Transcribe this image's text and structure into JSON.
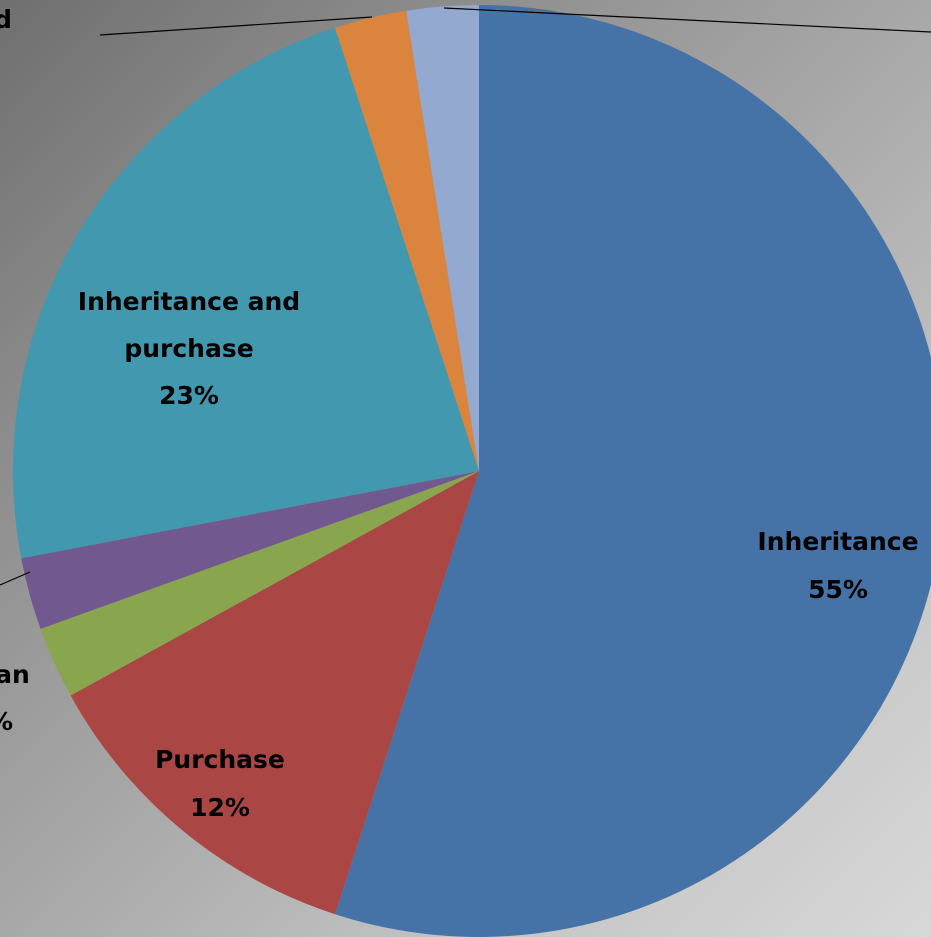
{
  "chart_data": {
    "type": "pie",
    "title": "",
    "slices": [
      {
        "label": "Inheritance",
        "value": 55,
        "percent_label": "55%",
        "color": "#4572A7"
      },
      {
        "label": "Purchase",
        "value": 12,
        "percent_label": "12%",
        "color": "#AA4643"
      },
      {
        "label": "",
        "value": 2.5,
        "percent_label": "",
        "color": "#89A54E"
      },
      {
        "label": "",
        "value": 2.5,
        "percent_label": "",
        "color": "#71588F"
      },
      {
        "label": "Inheritance and purchase",
        "value": 23,
        "percent_label": "23%",
        "color": "#4198AF"
      },
      {
        "label": "",
        "value": 2.5,
        "percent_label": "",
        "color": "#DB843D"
      },
      {
        "label": "",
        "value": 2.5,
        "percent_label": "",
        "color": "#93A9CF"
      }
    ],
    "cropped_labels": [
      {
        "text": "d"
      },
      {
        "text": "oan"
      },
      {
        "text": "%"
      }
    ],
    "legend": "none",
    "grid": false
  }
}
